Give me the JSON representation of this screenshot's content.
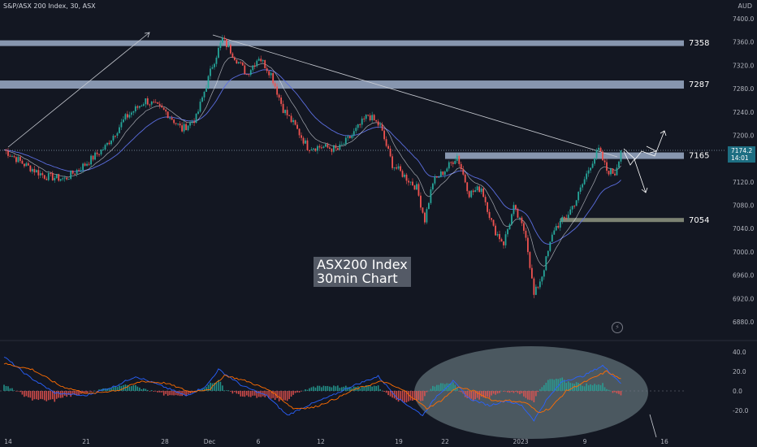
{
  "header": {
    "symbol": "S&P/ASX 200 Index, 30, ASX",
    "currency": "AUD"
  },
  "annotation": {
    "line1": "ASX200 Index",
    "line2": "30min Chart"
  },
  "price_tag": {
    "price": "7174.2",
    "countdown": "14:01"
  },
  "colors": {
    "background": "#131722",
    "up": "#26a69a",
    "down": "#ef5350",
    "zone": "#b4c8e6",
    "support": "#8a8f7c",
    "fast_ma": "#2962ff",
    "slow_ma": "#5b6ee0",
    "macd": "#2962ff",
    "signal": "#ff6d00",
    "ellipse": "#a7c2c6"
  },
  "chart_data": [
    {
      "type": "candlestick",
      "title": "S&P/ASX 200 Index, 30, ASX",
      "x_ticks": [
        "14",
        "21",
        "28",
        "Dec",
        "6",
        "12",
        "19",
        "22",
        "2023",
        "9",
        "16"
      ],
      "y_ticks": [
        6880.0,
        6920.0,
        6960.0,
        7000.0,
        7040.0,
        7080.0,
        7120.0,
        7160.0,
        7200.0,
        7240.0,
        7280.0,
        7320.0,
        7360.0,
        7400.0
      ],
      "ylim": [
        6860,
        7410
      ],
      "y_axis_unit": "AUD",
      "grid": false,
      "last_price": 7174.2,
      "horizontal_levels": [
        {
          "label": "7358",
          "value": 7358
        },
        {
          "label": "7287",
          "value": 7287
        },
        {
          "label": "7165",
          "value": 7165
        },
        {
          "label": "7054",
          "value": 7054
        }
      ],
      "trend_waypoints": [
        {
          "x": 0,
          "close": 7175
        },
        {
          "x": 10,
          "close": 7150
        },
        {
          "x": 20,
          "close": 7130
        },
        {
          "x": 30,
          "close": 7125
        },
        {
          "x": 40,
          "close": 7150
        },
        {
          "x": 50,
          "close": 7180
        },
        {
          "x": 60,
          "close": 7230
        },
        {
          "x": 70,
          "close": 7260
        },
        {
          "x": 80,
          "close": 7240
        },
        {
          "x": 88,
          "close": 7210
        },
        {
          "x": 95,
          "close": 7230
        },
        {
          "x": 103,
          "close": 7320
        },
        {
          "x": 108,
          "close": 7365
        },
        {
          "x": 115,
          "close": 7330
        },
        {
          "x": 120,
          "close": 7305
        },
        {
          "x": 126,
          "close": 7335
        },
        {
          "x": 132,
          "close": 7305
        },
        {
          "x": 138,
          "close": 7245
        },
        {
          "x": 144,
          "close": 7215
        },
        {
          "x": 150,
          "close": 7180
        },
        {
          "x": 158,
          "close": 7180
        },
        {
          "x": 165,
          "close": 7175
        },
        {
          "x": 172,
          "close": 7200
        },
        {
          "x": 180,
          "close": 7235
        },
        {
          "x": 186,
          "close": 7215
        },
        {
          "x": 192,
          "close": 7150
        },
        {
          "x": 198,
          "close": 7130
        },
        {
          "x": 204,
          "close": 7110
        },
        {
          "x": 208,
          "close": 7055
        },
        {
          "x": 212,
          "close": 7120
        },
        {
          "x": 218,
          "close": 7140
        },
        {
          "x": 224,
          "close": 7165
        },
        {
          "x": 230,
          "close": 7100
        },
        {
          "x": 236,
          "close": 7110
        },
        {
          "x": 242,
          "close": 7040
        },
        {
          "x": 247,
          "close": 7015
        },
        {
          "x": 252,
          "close": 7075
        },
        {
          "x": 258,
          "close": 7030
        },
        {
          "x": 262,
          "close": 6925
        },
        {
          "x": 266,
          "close": 6960
        },
        {
          "x": 272,
          "close": 7040
        },
        {
          "x": 278,
          "close": 7060
        },
        {
          "x": 283,
          "close": 7090
        },
        {
          "x": 290,
          "close": 7150
        },
        {
          "x": 294,
          "close": 7175
        },
        {
          "x": 298,
          "close": 7140
        },
        {
          "x": 302,
          "close": 7135
        },
        {
          "x": 305,
          "close": 7174.2
        }
      ],
      "ma_fast_offset": 15,
      "ma_slow_offset": 35,
      "annotations": [
        "ASX200 Index",
        "30min Chart"
      ]
    },
    {
      "type": "line",
      "title": "",
      "y_ticks": [
        -20.0,
        0.0,
        20.0,
        40.0
      ],
      "ylim": [
        -48,
        55
      ],
      "grid": false,
      "series": [
        {
          "name": "",
          "waypoints": [
            {
              "x": 0,
              "y": 35
            },
            {
              "x": 12,
              "y": 15
            },
            {
              "x": 25,
              "y": -2
            },
            {
              "x": 40,
              "y": -5
            },
            {
              "x": 55,
              "y": 5
            },
            {
              "x": 65,
              "y": 15
            },
            {
              "x": 78,
              "y": 5
            },
            {
              "x": 90,
              "y": -5
            },
            {
              "x": 100,
              "y": 5
            },
            {
              "x": 106,
              "y": 22
            },
            {
              "x": 118,
              "y": 5
            },
            {
              "x": 130,
              "y": -5
            },
            {
              "x": 140,
              "y": -25
            },
            {
              "x": 150,
              "y": -15
            },
            {
              "x": 162,
              "y": -5
            },
            {
              "x": 172,
              "y": 5
            },
            {
              "x": 185,
              "y": 15
            },
            {
              "x": 195,
              "y": -8
            },
            {
              "x": 207,
              "y": -25
            },
            {
              "x": 214,
              "y": -5
            },
            {
              "x": 222,
              "y": 10
            },
            {
              "x": 230,
              "y": -8
            },
            {
              "x": 240,
              "y": -15
            },
            {
              "x": 248,
              "y": -10
            },
            {
              "x": 256,
              "y": -15
            },
            {
              "x": 262,
              "y": -30
            },
            {
              "x": 268,
              "y": -10
            },
            {
              "x": 276,
              "y": 10
            },
            {
              "x": 286,
              "y": 15
            },
            {
              "x": 296,
              "y": 26
            },
            {
              "x": 305,
              "y": 8
            }
          ]
        },
        {
          "name": "",
          "waypoints": [
            {
              "x": 0,
              "y": 28
            },
            {
              "x": 14,
              "y": 22
            },
            {
              "x": 28,
              "y": 5
            },
            {
              "x": 42,
              "y": -3
            },
            {
              "x": 57,
              "y": 1
            },
            {
              "x": 68,
              "y": 10
            },
            {
              "x": 80,
              "y": 8
            },
            {
              "x": 92,
              "y": -1
            },
            {
              "x": 102,
              "y": 2
            },
            {
              "x": 109,
              "y": 16
            },
            {
              "x": 120,
              "y": 10
            },
            {
              "x": 132,
              "y": 0
            },
            {
              "x": 143,
              "y": -18
            },
            {
              "x": 153,
              "y": -17
            },
            {
              "x": 164,
              "y": -8
            },
            {
              "x": 174,
              "y": 2
            },
            {
              "x": 187,
              "y": 10
            },
            {
              "x": 198,
              "y": 0
            },
            {
              "x": 209,
              "y": -18
            },
            {
              "x": 216,
              "y": -10
            },
            {
              "x": 224,
              "y": 4
            },
            {
              "x": 232,
              "y": 0
            },
            {
              "x": 242,
              "y": -10
            },
            {
              "x": 250,
              "y": -10
            },
            {
              "x": 258,
              "y": -12
            },
            {
              "x": 264,
              "y": -22
            },
            {
              "x": 270,
              "y": -18
            },
            {
              "x": 278,
              "y": 0
            },
            {
              "x": 288,
              "y": 10
            },
            {
              "x": 298,
              "y": 20
            },
            {
              "x": 305,
              "y": 12
            }
          ]
        }
      ],
      "histogram": "difference between the two lines"
    }
  ]
}
